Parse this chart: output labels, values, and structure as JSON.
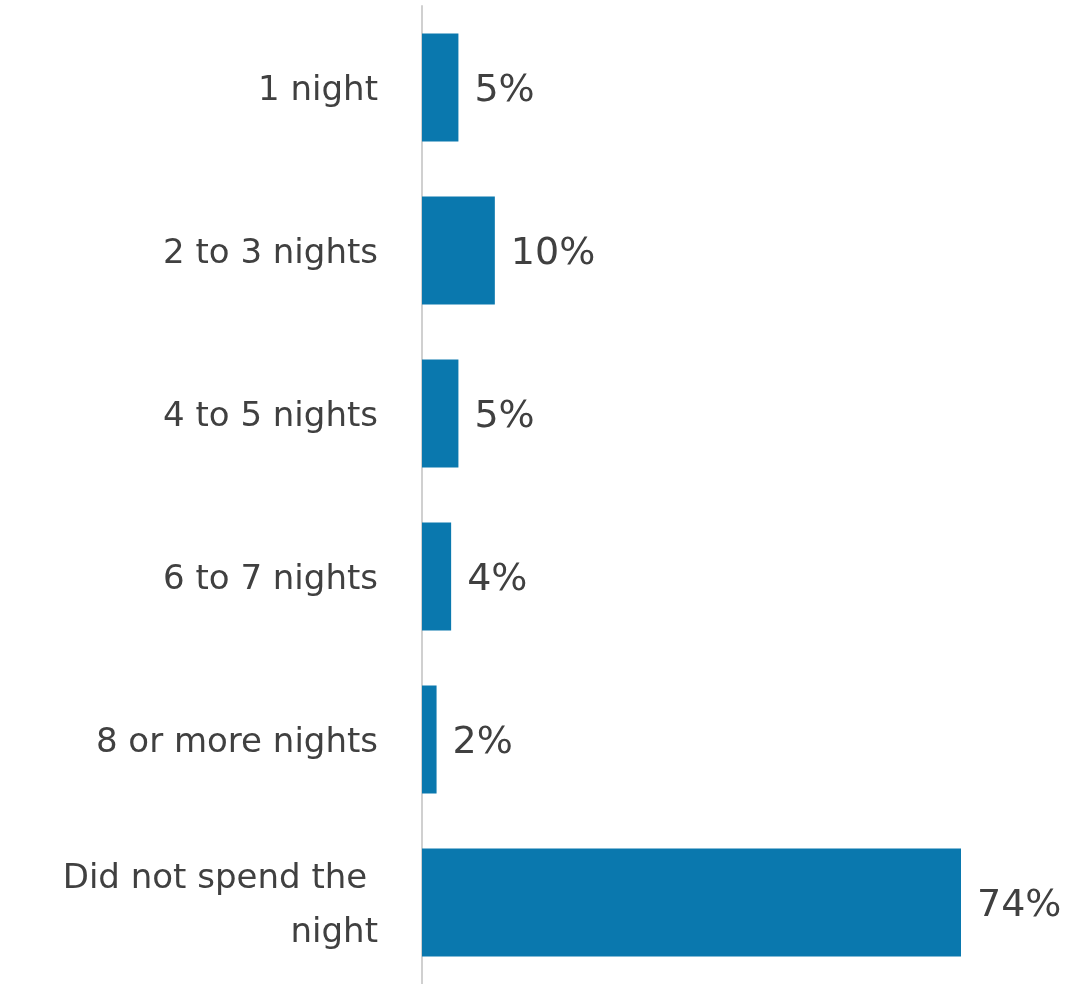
{
  "chart_data": {
    "type": "bar",
    "orientation": "horizontal",
    "categories": [
      "1 night",
      "2 to 3 nights",
      "4 to 5 nights",
      "6 to 7 nights",
      "8 or more nights",
      "Did not spend the night"
    ],
    "values": [
      5,
      10,
      5,
      4,
      2,
      74
    ],
    "value_labels": [
      "5%",
      "10%",
      "5%",
      "4%",
      "2%",
      "74%"
    ],
    "color": "#0a78ae"
  }
}
